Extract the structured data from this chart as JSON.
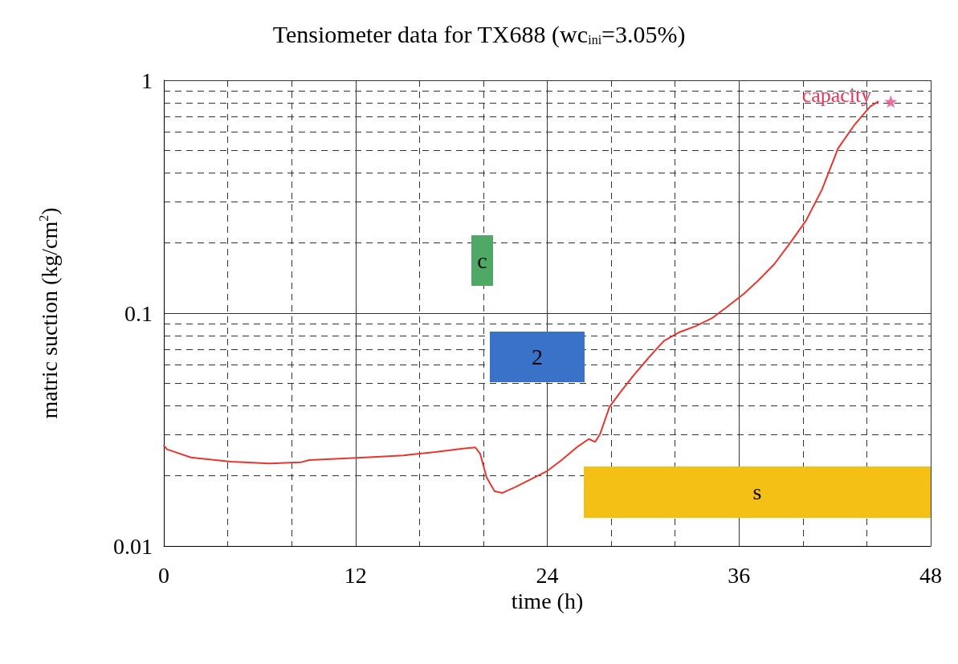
{
  "chart_data": {
    "type": "line",
    "title": "Tensiometer data for TX688 (wc$_{ini}$=3.05%)",
    "xlabel": "time (h)",
    "ylabel": "matric suction (kg/cm$^{2}$)",
    "xlim": [
      0,
      48
    ],
    "xticks": [
      0,
      12,
      24,
      36,
      48
    ],
    "ylim": [
      0.01,
      1
    ],
    "yticks": [
      0.01,
      0.1,
      1
    ],
    "log": "y",
    "grid": true,
    "marker": "none",
    "line_style": "solid",
    "series": [
      {
        "color": "#e8362f",
        "x": [
          0,
          0.2,
          1.7,
          4.2,
          6.6,
          8.6,
          9.1,
          12.6,
          15,
          17,
          18.7,
          19.5,
          19.8,
          20.2,
          20.7,
          21.2,
          22,
          23,
          24,
          24.9,
          25.9,
          26.6,
          27,
          27.3,
          27.9,
          28.6,
          29.4,
          30.4,
          31.3,
          32.3,
          33.3,
          34.3,
          35.3,
          36.3,
          37.2,
          38.2,
          39.2,
          40.2,
          41.2,
          42.2,
          43.2,
          44.2,
          44.7
        ],
        "values": [
          0.027,
          0.026,
          0.024,
          0.023,
          0.0226,
          0.0229,
          0.0234,
          0.024,
          0.0245,
          0.0253,
          0.0262,
          0.0265,
          0.0249,
          0.0197,
          0.0172,
          0.0169,
          0.0179,
          0.0194,
          0.021,
          0.0234,
          0.0267,
          0.0288,
          0.028,
          0.0302,
          0.0396,
          0.046,
          0.054,
          0.065,
          0.076,
          0.083,
          0.088,
          0.095,
          0.107,
          0.121,
          0.138,
          0.162,
          0.2,
          0.25,
          0.34,
          0.51,
          0.64,
          0.77,
          0.81
        ]
      },
      {
        "type": "scatter",
        "marker": "star",
        "color": "#e0508c",
        "x": [
          45.5
        ],
        "values": [
          0.81
        ]
      }
    ],
    "annotations": [
      {
        "text": "capacity",
        "x": 45.5,
        "y": 0.81
      },
      "c",
      "2",
      "s"
    ]
  }
}
